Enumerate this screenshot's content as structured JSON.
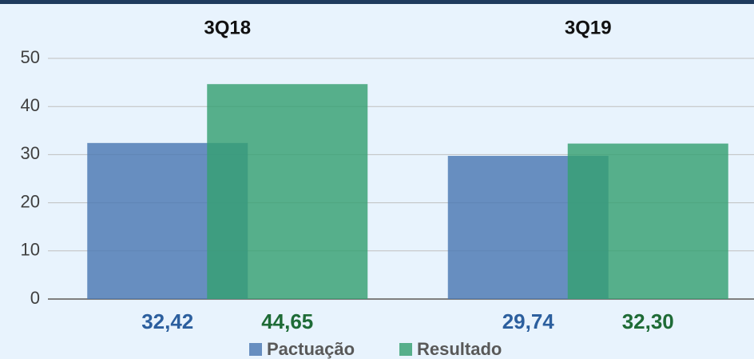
{
  "chart_data": {
    "type": "bar",
    "categories": [
      "3Q18",
      "3Q19"
    ],
    "series": [
      {
        "name": "Pactuação",
        "color": "#4a78b2",
        "values": [
          32.42,
          29.74
        ],
        "value_labels": [
          "32,42",
          "29,74"
        ],
        "label_color": "#2c5f9e"
      },
      {
        "name": "Resultado",
        "color": "#36a072",
        "values": [
          44.65,
          32.3
        ],
        "value_labels": [
          "44,65",
          "32,30"
        ],
        "label_color": "#1e6b36"
      }
    ],
    "ylim": [
      0,
      50
    ],
    "yticks": [
      0,
      10,
      20,
      30,
      40,
      50
    ],
    "grid": true,
    "legend": "bottom"
  }
}
